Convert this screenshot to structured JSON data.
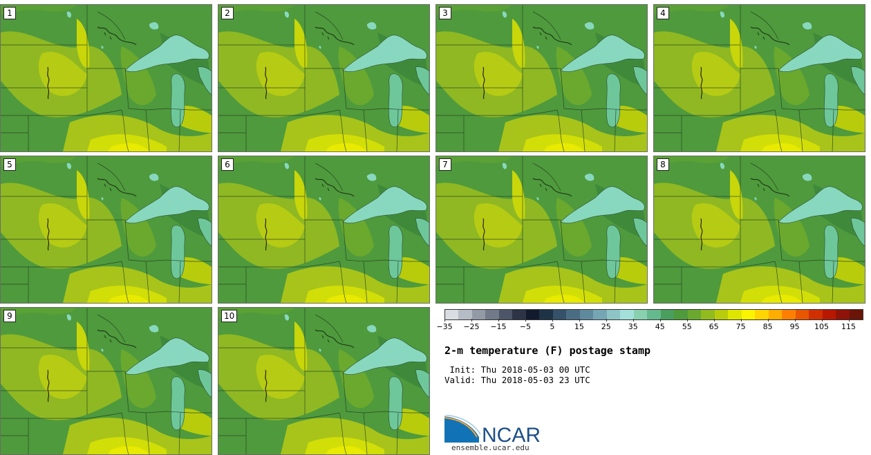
{
  "panels": [
    {
      "label": "1"
    },
    {
      "label": "2"
    },
    {
      "label": "3"
    },
    {
      "label": "4"
    },
    {
      "label": "5"
    },
    {
      "label": "6"
    },
    {
      "label": "7"
    },
    {
      "label": "8"
    },
    {
      "label": "9"
    },
    {
      "label": "10"
    }
  ],
  "colorbar": {
    "colors": [
      "#d9dde2",
      "#b6bcc5",
      "#929aa6",
      "#707a88",
      "#4d5668",
      "#2c3446",
      "#121a2e",
      "#1f3347",
      "#36516a",
      "#4b6d83",
      "#5f8a9d",
      "#76a6b3",
      "#8ec4c6",
      "#a3e0d9",
      "#88d0b0",
      "#64b98d",
      "#4a9e5e",
      "#4f9a3c",
      "#6aa92e",
      "#91bb1e",
      "#b8cc0c",
      "#dee600",
      "#fbf400",
      "#ffd400",
      "#ffad00",
      "#ff8000",
      "#e85600",
      "#d03000",
      "#b81800",
      "#8f1308",
      "#6b1408"
    ],
    "tick_labels": [
      "−35",
      "−25",
      "−15",
      "−5",
      "5",
      "15",
      "25",
      "35",
      "45",
      "55",
      "65",
      "75",
      "85",
      "95",
      "105",
      "115"
    ]
  },
  "title": "2-m temperature (F) postage stamp",
  "init": " Init: Thu 2018-05-03 00 UTC",
  "valid": "Valid: Thu 2018-05-03 23 UTC",
  "logo": {
    "text": "NCAR",
    "url": "ensemble.ucar.edu"
  }
}
